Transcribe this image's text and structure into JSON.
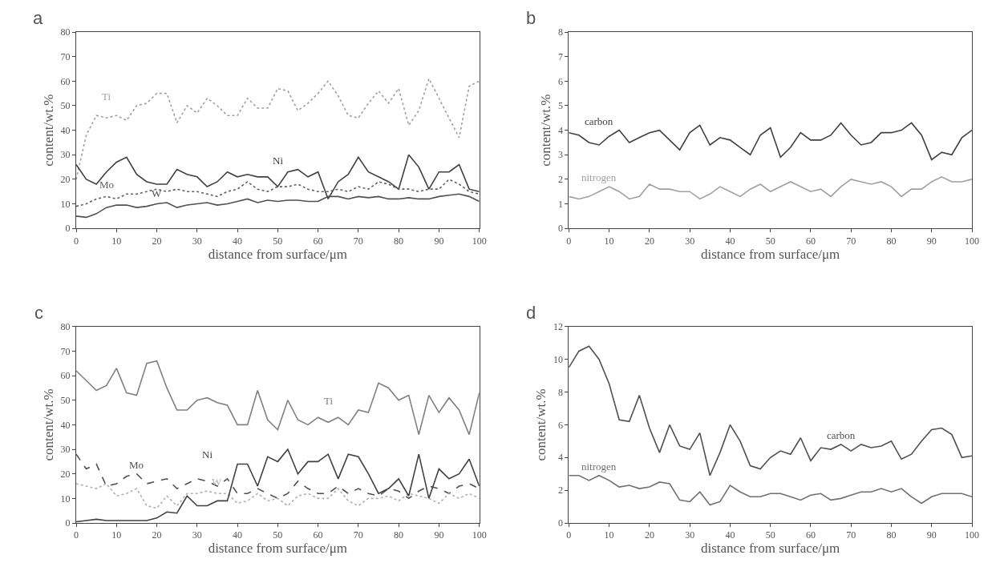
{
  "chart_data": [
    {
      "type": "line",
      "title": "a",
      "xlabel": "distance from surface/μm",
      "ylabel": "content/wt.%",
      "xlim": [
        0,
        100
      ],
      "ylim": [
        0,
        80
      ],
      "xticks": [
        0,
        10,
        20,
        30,
        40,
        50,
        60,
        70,
        80,
        90,
        100
      ],
      "yticks": [
        0,
        10,
        20,
        30,
        40,
        50,
        60,
        70,
        80
      ],
      "legend": false,
      "x": [
        0,
        2.5,
        5,
        7.5,
        10,
        12.5,
        15,
        17.5,
        20,
        22.5,
        25,
        27.5,
        30,
        32.5,
        35,
        37.5,
        40,
        42.5,
        45,
        47.5,
        50,
        52.5,
        55,
        57.5,
        60,
        62.5,
        65,
        67.5,
        70,
        72.5,
        75,
        77.5,
        80,
        82.5,
        85,
        87.5,
        90,
        92.5,
        95,
        97.5,
        100
      ],
      "series": [
        {
          "name": "Ti",
          "color": "#a0a0a0",
          "line_style": "dotted",
          "values": [
            20,
            38,
            46,
            45,
            46,
            44,
            50,
            51,
            55,
            55,
            43,
            50,
            47,
            53,
            50,
            46,
            46,
            53,
            49,
            49,
            57,
            56,
            48,
            51,
            55,
            60,
            54,
            46,
            45,
            51,
            56,
            51,
            57,
            42,
            48,
            61,
            53,
            45,
            37,
            58,
            60
          ]
        },
        {
          "name": "Ni",
          "color": "#404040",
          "line_style": "solid",
          "values": [
            26,
            20,
            18,
            23,
            27,
            29,
            22,
            19,
            18,
            18,
            24,
            22,
            21,
            17,
            19,
            23,
            21,
            22,
            21,
            21,
            17,
            23,
            24,
            21,
            23,
            12,
            19,
            22,
            29,
            23,
            21,
            19,
            16,
            30,
            25,
            16,
            23,
            23,
            26,
            16,
            15
          ]
        },
        {
          "name": "Mo",
          "color": "#606060",
          "line_style": "dotted",
          "values": [
            9,
            10,
            12,
            13,
            12,
            14,
            14,
            15,
            16,
            15,
            16,
            15,
            15,
            14,
            13,
            15,
            16,
            19,
            16,
            15,
            17,
            17,
            18,
            16,
            15,
            15,
            16,
            15,
            17,
            16,
            19,
            18,
            16,
            16,
            15,
            16,
            16,
            20,
            18,
            15,
            14
          ]
        },
        {
          "name": "W",
          "color": "#505050",
          "line_style": "solid",
          "values": [
            5,
            4.5,
            6,
            8.5,
            9.5,
            9.5,
            8.5,
            9,
            10,
            10.5,
            8.5,
            9.5,
            10,
            10.5,
            9.5,
            10,
            11,
            12,
            10.5,
            11.5,
            11,
            11.5,
            11.5,
            11,
            11,
            13,
            13,
            12,
            13,
            12.5,
            13,
            12,
            12,
            12.5,
            12,
            12,
            13,
            13.5,
            14,
            13,
            11
          ]
        }
      ]
    },
    {
      "type": "line",
      "title": "b",
      "xlabel": "distance from surface/μm",
      "ylabel": "content/wt.%",
      "xlim": [
        0,
        100
      ],
      "ylim": [
        0,
        8
      ],
      "xticks": [
        0,
        10,
        20,
        30,
        40,
        50,
        60,
        70,
        80,
        90,
        100
      ],
      "yticks": [
        0,
        1,
        2,
        3,
        4,
        5,
        6,
        7,
        8
      ],
      "legend": false,
      "x": [
        0,
        2.5,
        5,
        7.5,
        10,
        12.5,
        15,
        17.5,
        20,
        22.5,
        25,
        27.5,
        30,
        32.5,
        35,
        37.5,
        40,
        42.5,
        45,
        47.5,
        50,
        52.5,
        55,
        57.5,
        60,
        62.5,
        65,
        67.5,
        70,
        72.5,
        75,
        77.5,
        80,
        82.5,
        85,
        87.5,
        90,
        92.5,
        95,
        97.5,
        100
      ],
      "series": [
        {
          "name": "carbon",
          "color": "#404040",
          "line_style": "solid",
          "values": [
            3.9,
            3.8,
            3.5,
            3.4,
            3.75,
            4.0,
            3.5,
            3.7,
            3.9,
            4.0,
            3.6,
            3.2,
            3.9,
            4.2,
            3.4,
            3.7,
            3.6,
            3.3,
            3.0,
            3.8,
            4.1,
            2.9,
            3.3,
            3.9,
            3.6,
            3.6,
            3.8,
            4.3,
            3.8,
            3.4,
            3.5,
            3.9,
            3.9,
            4.0,
            4.3,
            3.8,
            2.8,
            3.1,
            3.0,
            3.7,
            4.0
          ]
        },
        {
          "name": "nitrogen",
          "color": "#a0a0a0",
          "line_style": "solid",
          "values": [
            1.3,
            1.2,
            1.3,
            1.5,
            1.7,
            1.5,
            1.2,
            1.3,
            1.8,
            1.6,
            1.6,
            1.5,
            1.5,
            1.2,
            1.4,
            1.7,
            1.5,
            1.3,
            1.6,
            1.8,
            1.5,
            1.7,
            1.9,
            1.7,
            1.5,
            1.6,
            1.3,
            1.7,
            2.0,
            1.9,
            1.8,
            1.9,
            1.7,
            1.3,
            1.6,
            1.6,
            1.9,
            2.1,
            1.9,
            1.9,
            2.0
          ]
        }
      ]
    },
    {
      "type": "line",
      "title": "c",
      "xlabel": "distance from surface/μm",
      "ylabel": "content/wt.%",
      "xlim": [
        0,
        100
      ],
      "ylim": [
        0,
        80
      ],
      "xticks": [
        0,
        10,
        20,
        30,
        40,
        50,
        60,
        70,
        80,
        90,
        100
      ],
      "yticks": [
        0,
        10,
        20,
        30,
        40,
        50,
        60,
        70,
        80
      ],
      "legend": false,
      "x": [
        0,
        2.5,
        5,
        7.5,
        10,
        12.5,
        15,
        17.5,
        20,
        22.5,
        25,
        27.5,
        30,
        32.5,
        35,
        37.5,
        40,
        42.5,
        45,
        47.5,
        50,
        52.5,
        55,
        57.5,
        60,
        62.5,
        65,
        67.5,
        70,
        72.5,
        75,
        77.5,
        80,
        82.5,
        85,
        87.5,
        90,
        92.5,
        95,
        97.5,
        100
      ],
      "series": [
        {
          "name": "Ti",
          "color": "#808080",
          "line_style": "solid",
          "values": [
            62,
            58,
            54,
            56,
            63,
            53,
            52,
            65,
            66,
            55,
            46,
            46,
            50,
            51,
            49,
            48,
            40,
            40,
            54,
            42,
            38,
            50,
            42,
            40,
            43,
            41,
            43,
            40,
            46,
            45,
            57,
            55,
            50,
            52,
            36,
            52,
            45,
            51,
            46,
            36,
            53
          ]
        },
        {
          "name": "Mo",
          "color": "#505050",
          "line_style": "dashed",
          "values": [
            28,
            22,
            24,
            15,
            16,
            19,
            20,
            16,
            17,
            18,
            14,
            16,
            18,
            17,
            15,
            18,
            12,
            12,
            14,
            12,
            10,
            12,
            17,
            14,
            12,
            12,
            15,
            12,
            14,
            12,
            11,
            14,
            13,
            10,
            13,
            15,
            14,
            12,
            15,
            16,
            14
          ]
        },
        {
          "name": "W",
          "color": "#b0b0b0",
          "line_style": "dotted",
          "values": [
            16,
            15,
            14,
            16,
            11,
            12,
            14,
            7,
            6,
            11,
            7,
            12,
            12,
            13,
            12,
            12,
            8,
            9,
            12,
            9,
            10,
            7,
            11,
            12,
            10,
            10,
            14,
            9,
            7,
            10,
            10,
            11,
            9,
            12,
            11,
            10,
            8,
            12,
            10,
            12,
            10
          ]
        },
        {
          "name": "Ni",
          "color": "#404040",
          "line_style": "solid",
          "values": [
            0.5,
            1,
            1.5,
            1,
            1,
            1,
            1,
            1,
            2,
            4.5,
            4,
            11,
            7,
            7,
            9,
            9,
            24,
            24,
            15,
            27,
            25,
            30,
            20,
            25,
            25,
            28,
            18,
            28,
            27,
            20,
            12,
            14,
            18,
            11,
            28,
            10,
            22,
            18,
            20,
            26,
            15
          ]
        }
      ]
    },
    {
      "type": "line",
      "title": "d",
      "xlabel": "distance from surface/μm",
      "ylabel": "content/wt.%",
      "xlim": [
        0,
        100
      ],
      "ylim": [
        0,
        12
      ],
      "xticks": [
        0,
        10,
        20,
        30,
        40,
        50,
        60,
        70,
        80,
        90,
        100
      ],
      "yticks": [
        0,
        2,
        4,
        6,
        8,
        10,
        12
      ],
      "legend": false,
      "x": [
        0,
        2.5,
        5,
        7.5,
        10,
        12.5,
        15,
        17.5,
        20,
        22.5,
        25,
        27.5,
        30,
        32.5,
        35,
        37.5,
        40,
        42.5,
        45,
        47.5,
        50,
        52.5,
        55,
        57.5,
        60,
        62.5,
        65,
        67.5,
        70,
        72.5,
        75,
        77.5,
        80,
        82.5,
        85,
        87.5,
        90,
        92.5,
        95,
        97.5,
        100
      ],
      "series": [
        {
          "name": "carbon",
          "color": "#505050",
          "line_style": "solid",
          "values": [
            9.5,
            10.5,
            10.8,
            10.0,
            8.5,
            6.3,
            6.2,
            7.8,
            5.8,
            4.3,
            6.0,
            4.7,
            4.5,
            5.5,
            2.9,
            4.3,
            6.0,
            5.0,
            3.5,
            3.3,
            4.0,
            4.4,
            4.2,
            5.2,
            3.8,
            4.6,
            4.5,
            4.8,
            4.4,
            4.8,
            4.6,
            4.7,
            5.0,
            3.9,
            4.2,
            5.0,
            5.7,
            5.8,
            5.4,
            4.0,
            4.1
          ]
        },
        {
          "name": "nitrogen",
          "color": "#707070",
          "line_style": "solid",
          "values": [
            2.9,
            2.9,
            2.6,
            2.9,
            2.6,
            2.2,
            2.3,
            2.1,
            2.2,
            2.5,
            2.4,
            1.4,
            1.3,
            1.9,
            1.1,
            1.3,
            2.3,
            1.9,
            1.6,
            1.6,
            1.8,
            1.8,
            1.6,
            1.4,
            1.7,
            1.8,
            1.4,
            1.5,
            1.7,
            1.9,
            1.9,
            2.1,
            1.9,
            2.1,
            1.6,
            1.2,
            1.6,
            1.8,
            1.8,
            1.8,
            1.6
          ]
        }
      ]
    }
  ]
}
